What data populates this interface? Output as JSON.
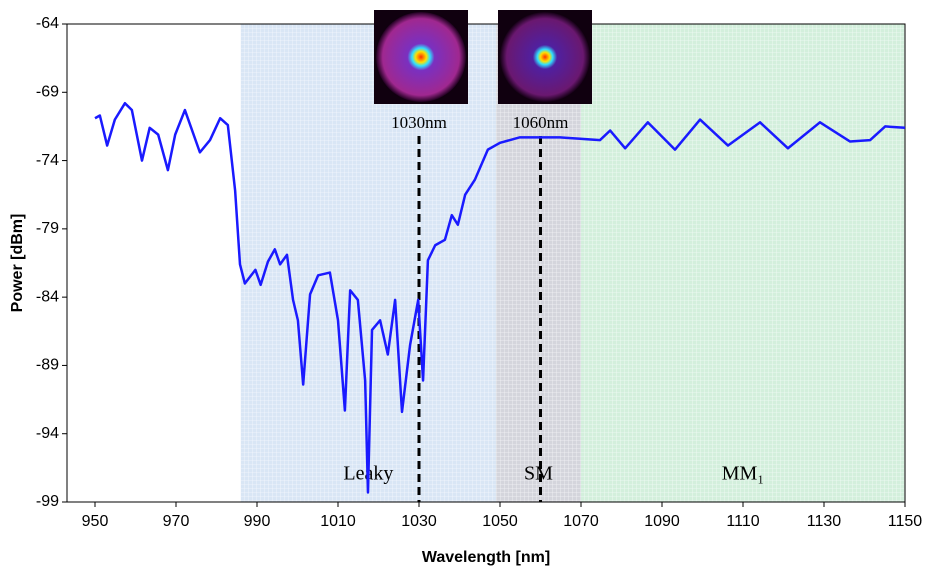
{
  "chart_data": {
    "type": "line",
    "xlabel": "Wavelength [nm]",
    "ylabel": "Power [dBm]",
    "xlim": [
      950,
      1150
    ],
    "ylim": [
      -99,
      -64
    ],
    "xticks": [
      950,
      970,
      990,
      1010,
      1030,
      1050,
      1070,
      1090,
      1110,
      1130,
      1150
    ],
    "yticks": [
      -64,
      -69,
      -74,
      -79,
      -84,
      -89,
      -94,
      -99
    ],
    "regions": [
      {
        "label": "Leaky",
        "start": 986,
        "end": 1049,
        "color": "#d9e6f5"
      },
      {
        "label": "SM",
        "start": 1049,
        "end": 1070,
        "color": "#d4d5dc"
      },
      {
        "label": "MM₁",
        "start": 1070,
        "end": 1150,
        "color": "#d3efdc"
      }
    ],
    "markers": [
      {
        "x": 1030,
        "label": "1030nm"
      },
      {
        "x": 1060,
        "label": "1060nm"
      }
    ],
    "series": [
      {
        "color": "#1a1aff",
        "x": [
          950,
          951.2,
          953,
          954.9,
          957.4,
          959.1,
          961.6,
          963.5,
          965.6,
          968,
          969.8,
          972.2,
          975.9,
          978.4,
          980.9,
          982.8,
          984.6,
          985.8,
          987,
          989.6,
          990.9,
          992.7,
          994.4,
          995.7,
          997.4,
          998.9,
          1000.1,
          1001.4,
          1003.1,
          1005.1,
          1008,
          1010,
          1011.7,
          1013,
          1014.9,
          1016.7,
          1017.4,
          1018.4,
          1020.4,
          1022.3,
          1024.1,
          1025.8,
          1027.8,
          1029.8,
          1031,
          1032.2,
          1034,
          1036.4,
          1038.1,
          1039.6,
          1041.4,
          1043.8,
          1047,
          1050,
          1054.9,
          1064.8,
          1074.7,
          1077.2,
          1080.9,
          1086.5,
          1093.2,
          1099.4,
          1106.3,
          1114.2,
          1121.1,
          1129,
          1136.4,
          1141.4,
          1145.1,
          1150
        ],
        "values": [
          -70.9,
          -70.7,
          -72.9,
          -71,
          -69.8,
          -70.3,
          -74,
          -71.6,
          -72.1,
          -74.7,
          -72.1,
          -70.3,
          -73.4,
          -72.5,
          -70.9,
          -71.4,
          -76.2,
          -81.6,
          -83,
          -82,
          -83.1,
          -81.4,
          -80.5,
          -81.6,
          -80.9,
          -84.2,
          -85.7,
          -90.4,
          -83.8,
          -82.4,
          -82.2,
          -85.7,
          -92.3,
          -83.5,
          -84.2,
          -90.1,
          -98.3,
          -86.4,
          -85.7,
          -88.2,
          -84.2,
          -92.4,
          -87.5,
          -84.2,
          -90.1,
          -81.3,
          -80.2,
          -79.8,
          -78,
          -78.7,
          -76.5,
          -75.4,
          -73.2,
          -72.7,
          -72.3,
          -72.3,
          -72.5,
          -71.8,
          -73.1,
          -71.2,
          -73.2,
          -71,
          -72.9,
          -71.2,
          -73.1,
          -71.2,
          -72.6,
          -72.5,
          -71.5,
          -71.6
        ]
      }
    ]
  }
}
